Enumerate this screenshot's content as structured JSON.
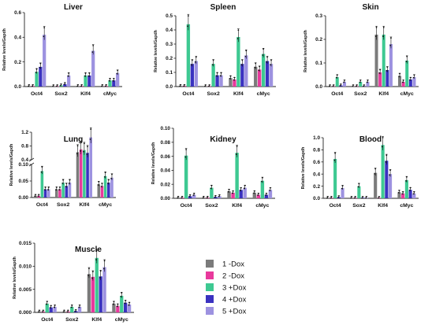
{
  "figure": {
    "colors": {
      "1 -Dox": "#7b7b7b",
      "2 -Dox": "#e8399c",
      "3 +Dox": "#3ec992",
      "4 +Dox": "#3a32c0",
      "5 +Dox": "#9d92e0"
    },
    "legend": [
      "1 -Dox",
      "2 -Dox",
      "3 +Dox",
      "4 +Dox",
      "5 +Dox"
    ]
  },
  "chart_data": [
    {
      "type": "bar",
      "title": "Liver",
      "ylabel": "Relative levels/Gapdh",
      "categories": [
        "Oct4",
        "Sox2",
        "Klf4",
        "cMyc"
      ],
      "ylim": [
        0,
        0.6
      ],
      "yticks": [
        "0.0",
        "0.2",
        "0.4",
        "0.6"
      ],
      "ytick_values": [
        0,
        0.2,
        0.4,
        0.6
      ],
      "series": [
        {
          "name": "1 -Dox",
          "values": [
            0.005,
            0.003,
            0.005,
            0.005
          ]
        },
        {
          "name": "2 -Dox",
          "values": [
            0.005,
            0.003,
            0.005,
            0.005
          ]
        },
        {
          "name": "3 +Dox",
          "values": [
            0.12,
            0.01,
            0.09,
            0.05
          ]
        },
        {
          "name": "4 +Dox",
          "values": [
            0.16,
            0.02,
            0.09,
            0.05
          ]
        },
        {
          "name": "5 +Dox",
          "values": [
            0.42,
            0.09,
            0.29,
            0.11
          ]
        }
      ]
    },
    {
      "type": "bar",
      "title": "Spleen",
      "ylabel": "Relative levels/Gapdh",
      "categories": [
        "Oct4",
        "Sox2",
        "Klf4",
        "cMyc"
      ],
      "ylim": [
        0,
        0.5
      ],
      "yticks": [
        "0.0",
        "0.1",
        "0.2",
        "0.3",
        "0.4",
        "0.5"
      ],
      "ytick_values": [
        0,
        0.1,
        0.2,
        0.3,
        0.4,
        0.5
      ],
      "series": [
        {
          "name": "1 -Dox",
          "values": [
            0.005,
            0.003,
            0.06,
            0.14
          ]
        },
        {
          "name": "2 -Dox",
          "values": [
            0.005,
            0.003,
            0.05,
            0.12
          ]
        },
        {
          "name": "3 +Dox",
          "values": [
            0.44,
            0.16,
            0.35,
            0.23
          ]
        },
        {
          "name": "4 +Dox",
          "values": [
            0.16,
            0.08,
            0.16,
            0.18
          ]
        },
        {
          "name": "5 +Dox",
          "values": [
            0.18,
            0.08,
            0.22,
            0.16
          ]
        }
      ]
    },
    {
      "type": "bar",
      "title": "Skin",
      "ylabel": "Relative levels/Gapdh",
      "categories": [
        "Oct4",
        "Sox2",
        "Klf4",
        "cMyc"
      ],
      "ylim": [
        0,
        0.3
      ],
      "yticks": [
        "0.0",
        "0.1",
        "0.2",
        "0.3"
      ],
      "ytick_values": [
        0,
        0.1,
        0.2,
        0.3
      ],
      "series": [
        {
          "name": "1 -Dox",
          "values": [
            0.002,
            0.002,
            0.22,
            0.045
          ]
        },
        {
          "name": "2 -Dox",
          "values": [
            0.002,
            0.002,
            0.06,
            0.02
          ]
        },
        {
          "name": "3 +Dox",
          "values": [
            0.04,
            0.02,
            0.22,
            0.11
          ]
        },
        {
          "name": "4 +Dox",
          "values": [
            0.005,
            0.002,
            0.07,
            0.03
          ]
        },
        {
          "name": "5 +Dox",
          "values": [
            0.02,
            0.02,
            0.18,
            0.04
          ]
        }
      ]
    },
    {
      "type": "bar",
      "title": "Lung",
      "ylabel": "Relative levels/Gapdh",
      "categories": [
        "Oct4",
        "Sox2",
        "Klf4",
        "cMyc"
      ],
      "broken_axis": true,
      "ylim_lower": [
        0,
        0.1
      ],
      "yticks_lower": [
        "0.00",
        "0.05",
        "0.10"
      ],
      "ytick_values_lower": [
        0,
        0.05,
        0.1
      ],
      "ylim_upper": [
        0.4,
        1.2
      ],
      "yticks_upper": [
        "0.4",
        "0.8",
        "1.2"
      ],
      "ytick_values_upper": [
        0.4,
        0.8,
        1.2
      ],
      "series": [
        {
          "name": "1 -Dox",
          "values": [
            0.005,
            0.025,
            0.62,
            0.04
          ]
        },
        {
          "name": "2 -Dox",
          "values": [
            0.005,
            0.025,
            0.7,
            0.035
          ]
        },
        {
          "name": "3 +Dox",
          "values": [
            0.08,
            0.045,
            0.68,
            0.065
          ]
        },
        {
          "name": "4 +Dox",
          "values": [
            0.025,
            0.035,
            0.6,
            0.045
          ]
        },
        {
          "name": "5 +Dox",
          "values": [
            0.025,
            0.045,
            1.05,
            0.06
          ]
        }
      ]
    },
    {
      "type": "bar",
      "title": "Kidney",
      "ylabel": "Relative levels/Gapdh",
      "categories": [
        "Oct4",
        "Sox2",
        "Klf4",
        "cMyc"
      ],
      "ylim": [
        0,
        0.1
      ],
      "yticks": [
        "0.00",
        "0.02",
        "0.04",
        "0.06",
        "0.08",
        "0.10"
      ],
      "ytick_values": [
        0,
        0.02,
        0.04,
        0.06,
        0.08,
        0.1
      ],
      "series": [
        {
          "name": "1 -Dox",
          "values": [
            0.001,
            0.001,
            0.01,
            0.008
          ]
        },
        {
          "name": "2 -Dox",
          "values": [
            0.001,
            0.001,
            0.008,
            0.005
          ]
        },
        {
          "name": "3 +Dox",
          "values": [
            0.061,
            0.015,
            0.065,
            0.025
          ]
        },
        {
          "name": "4 +Dox",
          "values": [
            0.003,
            0.002,
            0.012,
            0.005
          ]
        },
        {
          "name": "5 +Dox",
          "values": [
            0.005,
            0.003,
            0.015,
            0.012
          ]
        }
      ]
    },
    {
      "type": "bar",
      "title": "Blood",
      "ylabel": "Relative levels/Gapdh",
      "categories": [
        "Oct4",
        "Sox2",
        "Klf4",
        "cMyc"
      ],
      "ylim": [
        0,
        1.0
      ],
      "yticks": [
        "0.0",
        "0.2",
        "0.4",
        "0.6",
        "0.8",
        "1.0"
      ],
      "ytick_values": [
        0,
        0.2,
        0.4,
        0.6,
        0.8,
        1.0
      ],
      "series": [
        {
          "name": "1 -Dox",
          "values": [
            0.01,
            0.01,
            0.42,
            0.1
          ]
        },
        {
          "name": "2 -Dox",
          "values": [
            0.01,
            0.01,
            0.01,
            0.08
          ]
        },
        {
          "name": "3 +Dox",
          "values": [
            0.65,
            0.2,
            0.88,
            0.3
          ]
        },
        {
          "name": "4 +Dox",
          "values": [
            0.02,
            0.01,
            0.62,
            0.14
          ]
        },
        {
          "name": "5 +Dox",
          "values": [
            0.17,
            0.01,
            0.4,
            0.08
          ]
        }
      ]
    },
    {
      "type": "bar",
      "title": "Muscle",
      "ylabel": "Relative levels/Gapdh",
      "categories": [
        "Oct4",
        "Sox2",
        "Klf4",
        "cMyc"
      ],
      "ylim": [
        0,
        0.015
      ],
      "yticks": [
        "0.000",
        "0.005",
        "0.010",
        "0.015"
      ],
      "ytick_values": [
        0,
        0.005,
        0.01,
        0.015
      ],
      "series": [
        {
          "name": "1 -Dox",
          "values": [
            0.0002,
            0.0002,
            0.0083,
            0.0019
          ]
        },
        {
          "name": "2 -Dox",
          "values": [
            0.0002,
            0.0002,
            0.0077,
            0.0014
          ]
        },
        {
          "name": "3 +Dox",
          "values": [
            0.0019,
            0.0012,
            0.0118,
            0.0036
          ]
        },
        {
          "name": "4 +Dox",
          "values": [
            0.0011,
            0.0003,
            0.0078,
            0.0021
          ]
        },
        {
          "name": "5 +Dox",
          "values": [
            0.0012,
            0.0012,
            0.0098,
            0.0017
          ]
        }
      ]
    }
  ]
}
